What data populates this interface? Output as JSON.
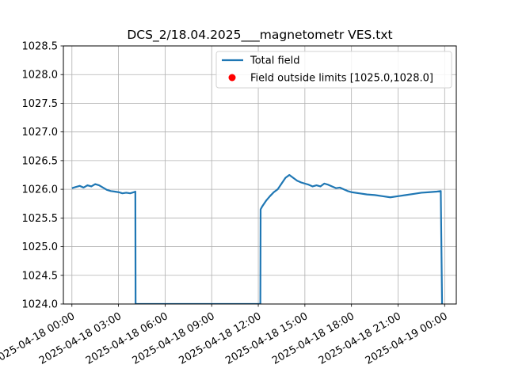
{
  "chart_data": {
    "type": "line",
    "title": "DCS_2/18.04.2025___magnetometr VES.txt",
    "xlabel": "",
    "ylabel": "",
    "x_type": "datetime",
    "xlim": [
      "2025-04-17T23:27:00",
      "2025-04-19T00:45:00"
    ],
    "ylim": [
      1024.0,
      1028.5
    ],
    "grid": true,
    "legend_placement": "top-right",
    "x_ticks": [
      "2025-04-18 00:00",
      "2025-04-18 03:00",
      "2025-04-18 06:00",
      "2025-04-18 09:00",
      "2025-04-18 12:00",
      "2025-04-18 15:00",
      "2025-04-18 18:00",
      "2025-04-18 21:00",
      "2025-04-19 00:00"
    ],
    "y_ticks": [
      "1024.0",
      "1024.5",
      "1025.0",
      "1025.5",
      "1026.0",
      "1026.5",
      "1027.0",
      "1027.5",
      "1028.0",
      "1028.5"
    ],
    "series": [
      {
        "name": "Total field",
        "color": "#1f77b4",
        "kind": "line",
        "points": [
          [
            "2025-04-18T00:00",
            1026.02
          ],
          [
            "2025-04-18T00:15",
            1026.04
          ],
          [
            "2025-04-18T00:30",
            1026.06
          ],
          [
            "2025-04-18T00:45",
            1026.03
          ],
          [
            "2025-04-18T01:00",
            1026.07
          ],
          [
            "2025-04-18T01:15",
            1026.05
          ],
          [
            "2025-04-18T01:30",
            1026.09
          ],
          [
            "2025-04-18T01:45",
            1026.07
          ],
          [
            "2025-04-18T02:00",
            1026.03
          ],
          [
            "2025-04-18T02:15",
            1025.99
          ],
          [
            "2025-04-18T02:30",
            1025.97
          ],
          [
            "2025-04-18T02:45",
            1025.96
          ],
          [
            "2025-04-18T03:00",
            1025.95
          ],
          [
            "2025-04-18T03:15",
            1025.93
          ],
          [
            "2025-04-18T03:30",
            1025.94
          ],
          [
            "2025-04-18T03:45",
            1025.93
          ],
          [
            "2025-04-18T04:00",
            1025.95
          ],
          [
            "2025-04-18T04:05",
            1025.96
          ],
          [
            "2025-04-18T04:06",
            1024.0
          ],
          [
            "2025-04-18T12:08",
            1024.0
          ],
          [
            "2025-04-18T12:09",
            1025.65
          ],
          [
            "2025-04-18T12:15",
            1025.7
          ],
          [
            "2025-04-18T12:30",
            1025.8
          ],
          [
            "2025-04-18T12:45",
            1025.88
          ],
          [
            "2025-04-18T13:00",
            1025.95
          ],
          [
            "2025-04-18T13:15",
            1026.0
          ],
          [
            "2025-04-18T13:30",
            1026.1
          ],
          [
            "2025-04-18T13:45",
            1026.2
          ],
          [
            "2025-04-18T14:00",
            1026.25
          ],
          [
            "2025-04-18T14:15",
            1026.2
          ],
          [
            "2025-04-18T14:30",
            1026.15
          ],
          [
            "2025-04-18T14:45",
            1026.12
          ],
          [
            "2025-04-18T15:00",
            1026.1
          ],
          [
            "2025-04-18T15:15",
            1026.08
          ],
          [
            "2025-04-18T15:30",
            1026.05
          ],
          [
            "2025-04-18T15:45",
            1026.07
          ],
          [
            "2025-04-18T16:00",
            1026.05
          ],
          [
            "2025-04-18T16:15",
            1026.1
          ],
          [
            "2025-04-18T16:30",
            1026.08
          ],
          [
            "2025-04-18T16:45",
            1026.05
          ],
          [
            "2025-04-18T17:00",
            1026.02
          ],
          [
            "2025-04-18T17:15",
            1026.03
          ],
          [
            "2025-04-18T17:30",
            1026.0
          ],
          [
            "2025-04-18T17:45",
            1025.97
          ],
          [
            "2025-04-18T18:00",
            1025.95
          ],
          [
            "2025-04-18T18:30",
            1025.93
          ],
          [
            "2025-04-18T19:00",
            1025.91
          ],
          [
            "2025-04-18T19:30",
            1025.9
          ],
          [
            "2025-04-18T20:00",
            1025.88
          ],
          [
            "2025-04-18T20:30",
            1025.86
          ],
          [
            "2025-04-18T21:00",
            1025.88
          ],
          [
            "2025-04-18T21:30",
            1025.9
          ],
          [
            "2025-04-18T22:00",
            1025.92
          ],
          [
            "2025-04-18T22:30",
            1025.94
          ],
          [
            "2025-04-18T23:00",
            1025.95
          ],
          [
            "2025-04-18T23:30",
            1025.96
          ],
          [
            "2025-04-18T23:45",
            1025.97
          ],
          [
            "2025-04-18T23:50",
            1024.0
          ]
        ]
      },
      {
        "name": "Field outside limits [1025.0,1028.0]",
        "color": "#ff0000",
        "kind": "scatter",
        "points": []
      }
    ]
  }
}
